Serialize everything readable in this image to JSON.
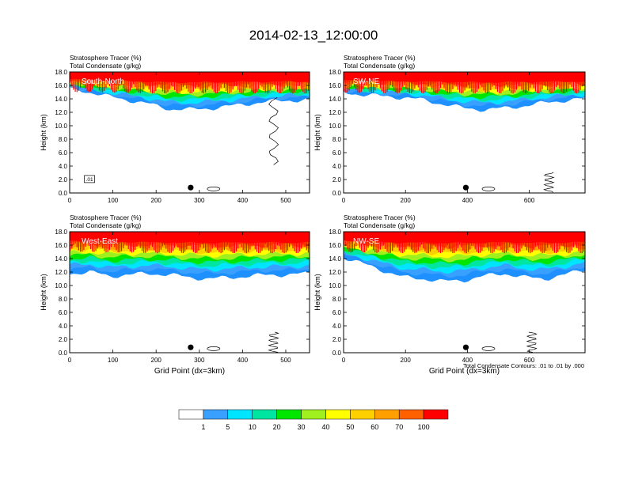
{
  "title": "2014-02-13_12:00:00",
  "chart_data": {
    "type": "heatmap",
    "title": "2014-02-13_12:00:00",
    "variables": {
      "shaded": "Stratosphere Tracer   (%)",
      "contour": "Total Condensate   (g/kg)"
    },
    "contour_note": "Total Condensate Contours: .01 to .01 by .000",
    "contour_label": ".01",
    "xlabel": "Grid Point (dx=3km)",
    "ylabel": "Height (km)",
    "ylim": [
      0,
      18
    ],
    "yticks": [
      "0.0",
      "2.0",
      "4.0",
      "6.0",
      "8.0",
      "10.0",
      "12.0",
      "14.0",
      "16.0",
      "18.0"
    ],
    "colorbar": {
      "levels": [
        "1",
        "5",
        "10",
        "20",
        "30",
        "40",
        "50",
        "60",
        "70",
        "100"
      ],
      "colors": [
        "#ffffff",
        "#1e90ff",
        "#3aa0ff",
        "#00e5ff",
        "#00e6a0",
        "#00e600",
        "#a0f020",
        "#ffff00",
        "#ffd000",
        "#ffa000",
        "#ff6000",
        "#ff0000"
      ]
    },
    "panels": [
      {
        "label": "South-North",
        "xlim": [
          0,
          555
        ],
        "xticks": [
          0,
          100,
          200,
          300,
          400,
          500
        ],
        "marker": {
          "x": 280,
          "y": 0.8
        },
        "tracer_base_km": [
          15.6,
          15.0,
          14.3,
          13.8,
          13.2,
          12.5,
          12.4,
          12.6,
          12.9,
          13.3,
          13.6,
          13.8,
          13.8
        ],
        "tracer_top_km": [
          17.0,
          17.0,
          16.9,
          16.9,
          16.8,
          16.8,
          16.8,
          16.8,
          16.8,
          16.8,
          16.8,
          16.8,
          16.8
        ]
      },
      {
        "label": "SW-NE",
        "xlim": [
          0,
          780
        ],
        "xticks": [
          0,
          200,
          400,
          600
        ],
        "marker": {
          "x": 395,
          "y": 0.8
        },
        "tracer_base_km": [
          15.0,
          14.6,
          14.4,
          14.2,
          13.8,
          13.2,
          12.6,
          12.4,
          12.6,
          13.0,
          13.4,
          13.8,
          14.0
        ],
        "tracer_top_km": [
          16.9,
          16.9,
          16.8,
          16.8,
          16.8,
          16.8,
          16.8,
          16.8,
          16.8,
          16.8,
          16.8,
          16.8,
          16.8
        ]
      },
      {
        "label": "West-East",
        "xlim": [
          0,
          555
        ],
        "xticks": [
          0,
          100,
          200,
          300,
          400,
          500
        ],
        "marker": {
          "x": 280,
          "y": 0.8
        },
        "tracer_base_km": [
          11.8,
          12.0,
          11.4,
          11.6,
          11.8,
          11.6,
          11.2,
          11.0,
          11.2,
          11.4,
          11.6,
          11.6,
          11.8
        ],
        "tracer_top_km": [
          17.0,
          17.0,
          16.9,
          16.9,
          16.8,
          16.8,
          16.8,
          16.8,
          16.8,
          16.8,
          16.8,
          16.8,
          16.8
        ]
      },
      {
        "label": "NW-SE",
        "xlim": [
          0,
          780
        ],
        "xticks": [
          0,
          200,
          400,
          600
        ],
        "marker": {
          "x": 395,
          "y": 0.8
        },
        "tracer_base_km": [
          14.2,
          13.2,
          12.2,
          11.2,
          11.0,
          10.6,
          10.8,
          11.4,
          11.8,
          11.2,
          11.0,
          11.6,
          12.4
        ],
        "tracer_top_km": [
          16.9,
          16.9,
          16.8,
          16.8,
          16.8,
          16.8,
          16.8,
          16.8,
          16.8,
          16.8,
          16.8,
          16.8,
          16.8
        ]
      }
    ]
  }
}
